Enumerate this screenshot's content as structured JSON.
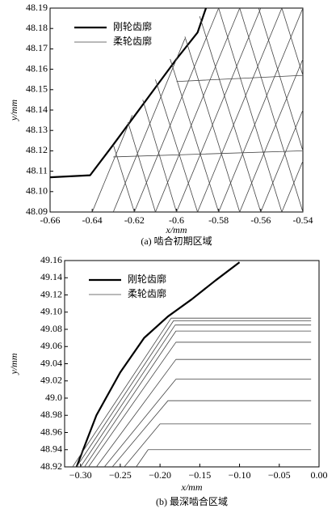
{
  "chart_data": [
    {
      "type": "line",
      "caption": "(a) 啮合初期区域",
      "x_label": "x/mm",
      "y_label": "y/mm",
      "legend": "upper left",
      "xlim": [
        -0.66,
        -0.54
      ],
      "xticks": [
        -0.66,
        -0.64,
        -0.62,
        -0.6,
        -0.58,
        -0.56,
        -0.54
      ],
      "ylim": [
        48.09,
        48.19
      ],
      "yticks": [
        48.09,
        {
          "value": 48.1,
          "label": "48.10"
        },
        48.11,
        48.12,
        48.13,
        48.14,
        48.15,
        48.16,
        48.17,
        48.18,
        48.19
      ],
      "series": [
        {
          "name": "刚轮齿廓",
          "color": "#000000",
          "line_width": 2.2,
          "x": [
            -0.66,
            -0.641,
            -0.63,
            -0.62,
            -0.61,
            -0.6,
            -0.59,
            -0.586
          ],
          "values": [
            48.107,
            48.108,
            48.123,
            48.137,
            48.151,
            48.165,
            48.178,
            48.19
          ]
        },
        {
          "name": "柔轮齿廓",
          "color": "#444444",
          "line_width": 0.8,
          "x": [
            -0.64,
            -0.621,
            null,
            -0.63,
            -0.596,
            null,
            -0.62,
            -0.58,
            null,
            -0.61,
            -0.57,
            null,
            -0.6,
            -0.56,
            null,
            -0.59,
            -0.55,
            null,
            -0.58,
            -0.54,
            null,
            -0.57,
            -0.54,
            null,
            -0.56,
            -0.54,
            null,
            -0.55,
            -0.54,
            null,
            -0.62,
            -0.63,
            null,
            -0.61,
            -0.623,
            null,
            -0.6,
            -0.616,
            null,
            -0.59,
            -0.61,
            null,
            -0.58,
            -0.603,
            null,
            -0.57,
            -0.596,
            null,
            -0.56,
            -0.589,
            null,
            -0.55,
            -0.58,
            null,
            -0.54,
            -0.57,
            null,
            -0.54,
            -0.561,
            null,
            -0.54,
            -0.55,
            null,
            -0.63,
            -0.54,
            null,
            -0.6,
            -0.54
          ],
          "values": [
            48.09,
            48.1375,
            null,
            48.09,
            48.175,
            null,
            48.09,
            48.19,
            null,
            48.09,
            48.19,
            null,
            48.09,
            48.19,
            null,
            48.09,
            48.19,
            null,
            48.09,
            48.19,
            null,
            48.09,
            48.165,
            null,
            48.09,
            48.14,
            null,
            48.09,
            48.115,
            null,
            48.09,
            48.123,
            null,
            48.09,
            48.134,
            null,
            48.09,
            48.145,
            null,
            48.09,
            48.155,
            null,
            48.09,
            48.165,
            null,
            48.09,
            48.176,
            null,
            48.09,
            48.186,
            null,
            48.09,
            48.19,
            null,
            48.09,
            48.19,
            null,
            48.12,
            48.19,
            null,
            48.157,
            48.19,
            null,
            48.117,
            48.12,
            null,
            48.154,
            48.157
          ]
        }
      ]
    },
    {
      "type": "line",
      "caption": "(b) 最深啮合区域",
      "x_label": "x/mm",
      "y_label": "y/mm",
      "legend": "upper left",
      "xlim": [
        -0.32,
        0.0
      ],
      "xticks": [
        {
          "value": -0.3,
          "label": "−0.30"
        },
        {
          "value": -0.25,
          "label": "−0.25"
        },
        {
          "value": -0.2,
          "label": "−0.20"
        },
        {
          "value": -0.15,
          "label": "−0.15"
        },
        {
          "value": -0.1,
          "label": "−0.10"
        },
        {
          "value": -0.05,
          "label": "−0.05"
        },
        {
          "value": 0,
          "label": "0.00"
        }
      ],
      "ylim": [
        48.92,
        49.16
      ],
      "yticks": [
        48.92,
        48.94,
        48.96,
        48.98,
        {
          "value": 49,
          "label": "49.0"
        },
        49.02,
        49.04,
        49.06,
        49.08,
        {
          "value": 49.1,
          "label": "49.10"
        },
        49.12,
        49.14,
        49.16
      ],
      "series": [
        {
          "name": "刚轮齿廓",
          "color": "#000000",
          "line_width": 2.2,
          "x": [
            -0.305,
            -0.28,
            -0.25,
            -0.22,
            -0.19,
            -0.16,
            -0.13,
            -0.1
          ],
          "values": [
            48.92,
            48.98,
            49.03,
            49.07,
            49.095,
            49.115,
            49.137,
            49.158
          ]
        },
        {
          "name": "柔轮齿廓",
          "color": "#444444",
          "line_width": 0.8,
          "x": [
            -0.31,
            -0.186,
            -0.01,
            null,
            -0.305,
            -0.183,
            -0.01,
            null,
            -0.3,
            -0.181,
            -0.01,
            null,
            -0.295,
            -0.18,
            -0.01,
            null,
            -0.29,
            -0.18,
            -0.01,
            null,
            -0.28,
            -0.18,
            -0.01,
            null,
            -0.27,
            -0.18,
            -0.01,
            null,
            -0.26,
            -0.19,
            -0.01,
            null,
            -0.245,
            -0.2,
            -0.01,
            null,
            -0.23,
            -0.215,
            -0.01
          ],
          "values": [
            48.92,
            49.093,
            49.093,
            null,
            48.92,
            49.09,
            49.09,
            null,
            48.92,
            49.085,
            49.085,
            null,
            48.92,
            49.078,
            49.078,
            null,
            48.92,
            49.065,
            49.065,
            null,
            48.92,
            49.045,
            49.045,
            null,
            48.92,
            49.022,
            49.022,
            null,
            48.92,
            48.997,
            48.997,
            null,
            48.92,
            48.97,
            48.97,
            null,
            48.92,
            48.94,
            48.94
          ]
        }
      ]
    }
  ]
}
